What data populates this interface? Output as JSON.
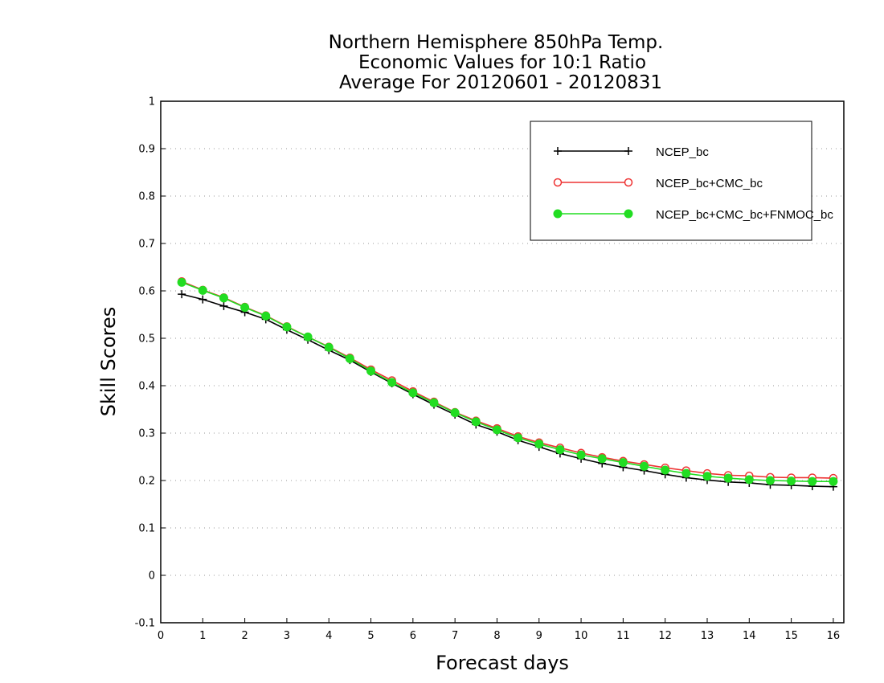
{
  "chart_data": {
    "type": "line",
    "title_lines": [
      "Northern Hemisphere 850hPa Temp.",
      "Economic Values for 10:1 Ratio",
      "Average For 20120601 - 20120831"
    ],
    "xlabel": "Forecast days",
    "ylabel": "Skill Scores",
    "xlim": [
      0,
      16.25
    ],
    "ylim": [
      -0.1,
      1
    ],
    "xticks": [
      0,
      1,
      2,
      3,
      4,
      5,
      6,
      7,
      8,
      9,
      10,
      11,
      12,
      13,
      14,
      15,
      16
    ],
    "xtick_labels": [
      "0",
      "1",
      "2",
      "3",
      "4",
      "5",
      "6",
      "7",
      "8",
      "9",
      "10",
      "11",
      "12",
      "13",
      "14",
      "15",
      "16"
    ],
    "yticks": [
      -0.1,
      0,
      0.1,
      0.2,
      0.3,
      0.4,
      0.5,
      0.6,
      0.7,
      0.8,
      0.9,
      1
    ],
    "ytick_labels": [
      "-0.1",
      "0",
      "0.1",
      "0.2",
      "0.3",
      "0.4",
      "0.5",
      "0.6",
      "0.7",
      "0.8",
      "0.9",
      "1"
    ],
    "grid": "dotted horizontal",
    "legend_position": "top-right",
    "x": [
      0.5,
      1,
      1.5,
      2,
      2.5,
      3,
      3.5,
      4,
      4.5,
      5,
      5.5,
      6,
      6.5,
      7,
      7.5,
      8,
      8.5,
      9,
      9.5,
      10,
      10.5,
      11,
      11.5,
      12,
      12.5,
      13,
      13.5,
      14,
      14.5,
      15,
      15.5,
      16
    ],
    "series": [
      {
        "name": "NCEP_bc",
        "color": "#000000",
        "marker": "plus",
        "values": [
          0.593,
          0.582,
          0.568,
          0.555,
          0.54,
          0.518,
          0.497,
          0.475,
          0.454,
          0.429,
          0.405,
          0.382,
          0.36,
          0.339,
          0.318,
          0.303,
          0.285,
          0.271,
          0.257,
          0.246,
          0.236,
          0.228,
          0.221,
          0.213,
          0.206,
          0.201,
          0.197,
          0.195,
          0.191,
          0.19,
          0.188,
          0.187
        ]
      },
      {
        "name": "NCEP_bc+CMC_bc",
        "color": "#ee3333",
        "marker": "open-circle",
        "values": [
          0.62,
          0.602,
          0.586,
          0.566,
          0.548,
          0.525,
          0.503,
          0.482,
          0.459,
          0.434,
          0.411,
          0.388,
          0.366,
          0.344,
          0.326,
          0.31,
          0.293,
          0.28,
          0.269,
          0.258,
          0.249,
          0.241,
          0.234,
          0.227,
          0.221,
          0.215,
          0.211,
          0.21,
          0.207,
          0.206,
          0.206,
          0.205
        ]
      },
      {
        "name": "NCEP_bc+CMC_bc+FNMOC_bc",
        "color": "#22dd22",
        "marker": "filled-circle",
        "values": [
          0.618,
          0.601,
          0.585,
          0.565,
          0.547,
          0.524,
          0.503,
          0.481,
          0.457,
          0.431,
          0.407,
          0.385,
          0.364,
          0.343,
          0.324,
          0.307,
          0.29,
          0.277,
          0.265,
          0.254,
          0.246,
          0.238,
          0.23,
          0.222,
          0.215,
          0.209,
          0.205,
          0.202,
          0.2,
          0.199,
          0.198,
          0.198
        ]
      }
    ]
  }
}
